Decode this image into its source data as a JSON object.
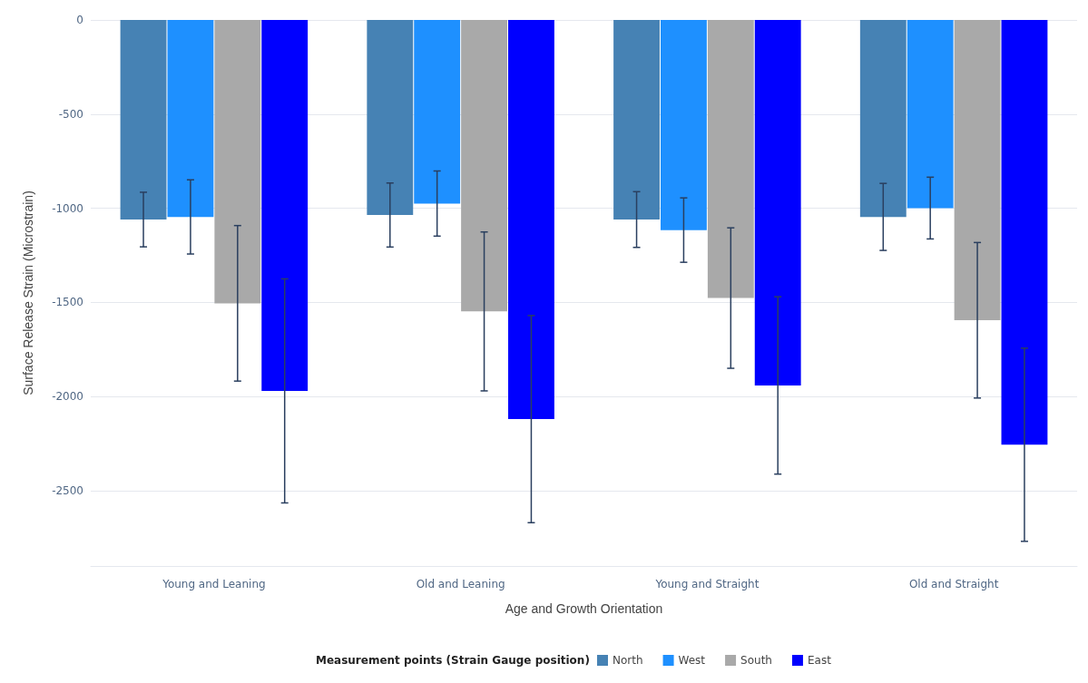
{
  "chart_data": {
    "type": "bar",
    "categories": [
      "Young and Leaning",
      "Old and Leaning",
      "Young and Straight",
      "Old and Straight"
    ],
    "xlabel": "Age and Growth Orientation",
    "ylabel": "Surface Release Strain (Microstrain)",
    "legend_title": "Measurement points (Strain Gauge position)",
    "series": [
      {
        "name": "North",
        "color": "#4682b4",
        "values": [
          -1060,
          -1036,
          -1060,
          -1046
        ],
        "errors": [
          145,
          170,
          148,
          178
        ]
      },
      {
        "name": "West",
        "color": "#1e90ff",
        "values": [
          -1046,
          -975,
          -1116,
          -999
        ],
        "errors": [
          197,
          173,
          171,
          164
        ]
      },
      {
        "name": "South",
        "color": "#a9a9a9",
        "values": [
          -1505,
          -1548,
          -1477,
          -1595
        ],
        "errors": [
          413,
          422,
          373,
          413
        ]
      },
      {
        "name": "East",
        "color": "#0000ff",
        "values": [
          -1970,
          -2120,
          -1941,
          -2256
        ],
        "errors": [
          595,
          550,
          471,
          513
        ]
      }
    ],
    "ylim": [
      -2900,
      0
    ],
    "yticks": [
      0,
      -500,
      -1000,
      -1500,
      -2000,
      -2500
    ],
    "grid": "y",
    "legend": "bottom"
  }
}
